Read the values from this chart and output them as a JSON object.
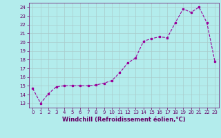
{
  "x": [
    0,
    1,
    2,
    3,
    4,
    5,
    6,
    7,
    8,
    9,
    10,
    11,
    12,
    13,
    14,
    15,
    16,
    17,
    18,
    19,
    20,
    21,
    22,
    23
  ],
  "y": [
    14.7,
    13.0,
    14.1,
    14.9,
    15.0,
    15.0,
    15.0,
    15.0,
    15.1,
    15.3,
    15.6,
    16.5,
    17.6,
    18.2,
    20.1,
    20.4,
    20.6,
    20.5,
    22.2,
    23.8,
    23.4,
    24.0,
    22.2,
    17.8
  ],
  "line_color": "#990099",
  "marker": "s",
  "marker_size": 2,
  "background_color": "#b3ecec",
  "grid_color": "#aacccc",
  "xlabel": "Windchill (Refroidissement éolien,°C)",
  "xlabel_color": "#660066",
  "tick_color": "#660066",
  "ylim": [
    12.5,
    24.5
  ],
  "xlim": [
    -0.5,
    23.5
  ],
  "yticks": [
    13,
    14,
    15,
    16,
    17,
    18,
    19,
    20,
    21,
    22,
    23,
    24
  ],
  "xticks": [
    0,
    1,
    2,
    3,
    4,
    5,
    6,
    7,
    8,
    9,
    10,
    11,
    12,
    13,
    14,
    15,
    16,
    17,
    18,
    19,
    20,
    21,
    22,
    23
  ]
}
